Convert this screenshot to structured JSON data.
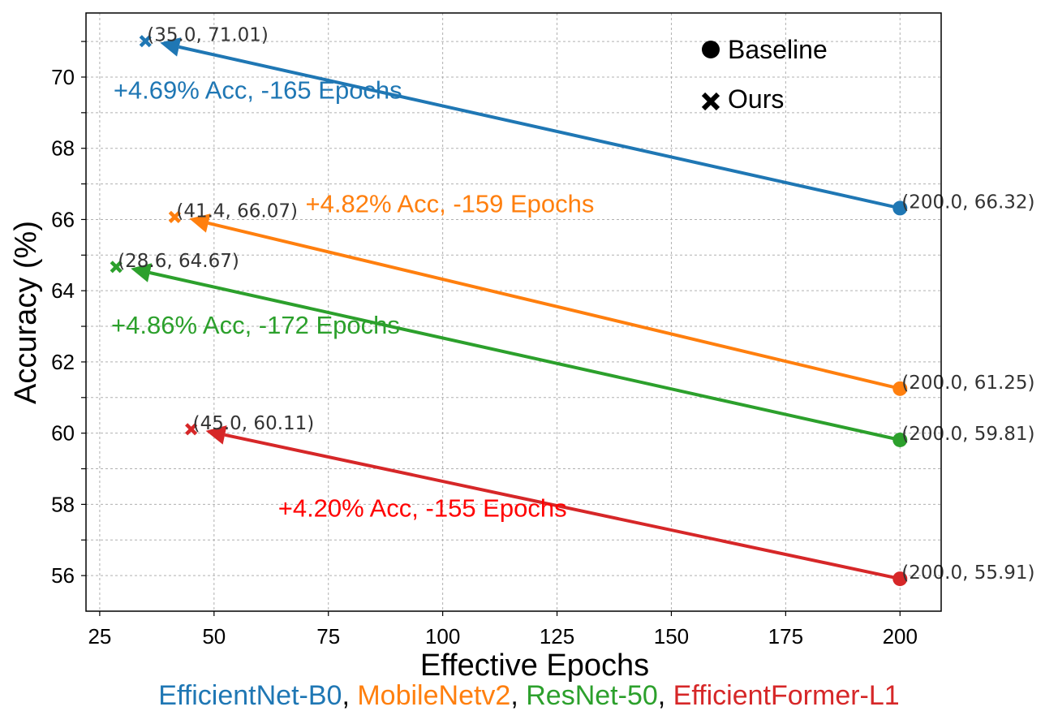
{
  "chart_data": {
    "type": "scatter",
    "xlabel": "Effective Epochs",
    "ylabel": "Accuracy (%)",
    "xlim": [
      22,
      209
    ],
    "ylim": [
      55,
      71.8
    ],
    "x_ticks": [
      25,
      50,
      75,
      100,
      125,
      150,
      175,
      200
    ],
    "y_ticks": [
      56,
      58,
      60,
      62,
      64,
      66,
      68,
      70
    ],
    "grid": true,
    "legend": {
      "placement": "top-right",
      "entries": [
        {
          "marker": "circle",
          "label": "Baseline"
        },
        {
          "marker": "x",
          "label": "Ours"
        }
      ]
    },
    "series": [
      {
        "name": "EfficientNet-B0",
        "color": "#1f77b4",
        "baseline": {
          "x": 200.0,
          "y": 66.32,
          "label": "(200.0, 66.32)"
        },
        "ours": {
          "x": 35.0,
          "y": 71.01,
          "label": "(35.0, 71.01)"
        },
        "annotation": "+4.69% Acc, -165 Epochs",
        "annotation_color": "#1f77b4",
        "annotation_at": {
          "x": 28,
          "y": 69.4
        }
      },
      {
        "name": "MobileNetv2",
        "color": "#ff7f0e",
        "baseline": {
          "x": 200.0,
          "y": 61.25,
          "label": "(200.0, 61.25)"
        },
        "ours": {
          "x": 41.4,
          "y": 66.07,
          "label": "(41.4, 66.07)"
        },
        "annotation": "+4.82% Acc, -159 Epochs",
        "annotation_color": "#ff7f0e",
        "annotation_at": {
          "x": 70,
          "y": 66.2
        }
      },
      {
        "name": "ResNet-50",
        "color": "#2ca02c",
        "baseline": {
          "x": 200.0,
          "y": 59.81,
          "label": "(200.0, 59.81)"
        },
        "ours": {
          "x": 28.6,
          "y": 64.67,
          "label": "(28.6, 64.67)"
        },
        "annotation": "+4.86% Acc, -172 Epochs",
        "annotation_color": "#2ca02c",
        "annotation_at": {
          "x": 27.5,
          "y": 62.8
        }
      },
      {
        "name": "EfficientFormer-L1",
        "color": "#d62728",
        "baseline": {
          "x": 200.0,
          "y": 55.91,
          "label": "(200.0, 55.91)"
        },
        "ours": {
          "x": 45.0,
          "y": 60.11,
          "label": "(45.0, 60.11)"
        },
        "annotation": "+4.20% Acc, -155 Epochs",
        "annotation_color": "#ff0000",
        "annotation_at": {
          "x": 64,
          "y": 57.65
        }
      }
    ]
  },
  "caption": {
    "parts": [
      {
        "text": "EfficientNet-B0",
        "color": "#1f77b4"
      },
      {
        "text": ", ",
        "color": "#000000"
      },
      {
        "text": "MobileNetv2",
        "color": "#ff7f0e"
      },
      {
        "text": ", ",
        "color": "#000000"
      },
      {
        "text": "ResNet-50",
        "color": "#2ca02c"
      },
      {
        "text": ", ",
        "color": "#000000"
      },
      {
        "text": "EfficientFormer-L1",
        "color": "#d62728"
      }
    ]
  }
}
